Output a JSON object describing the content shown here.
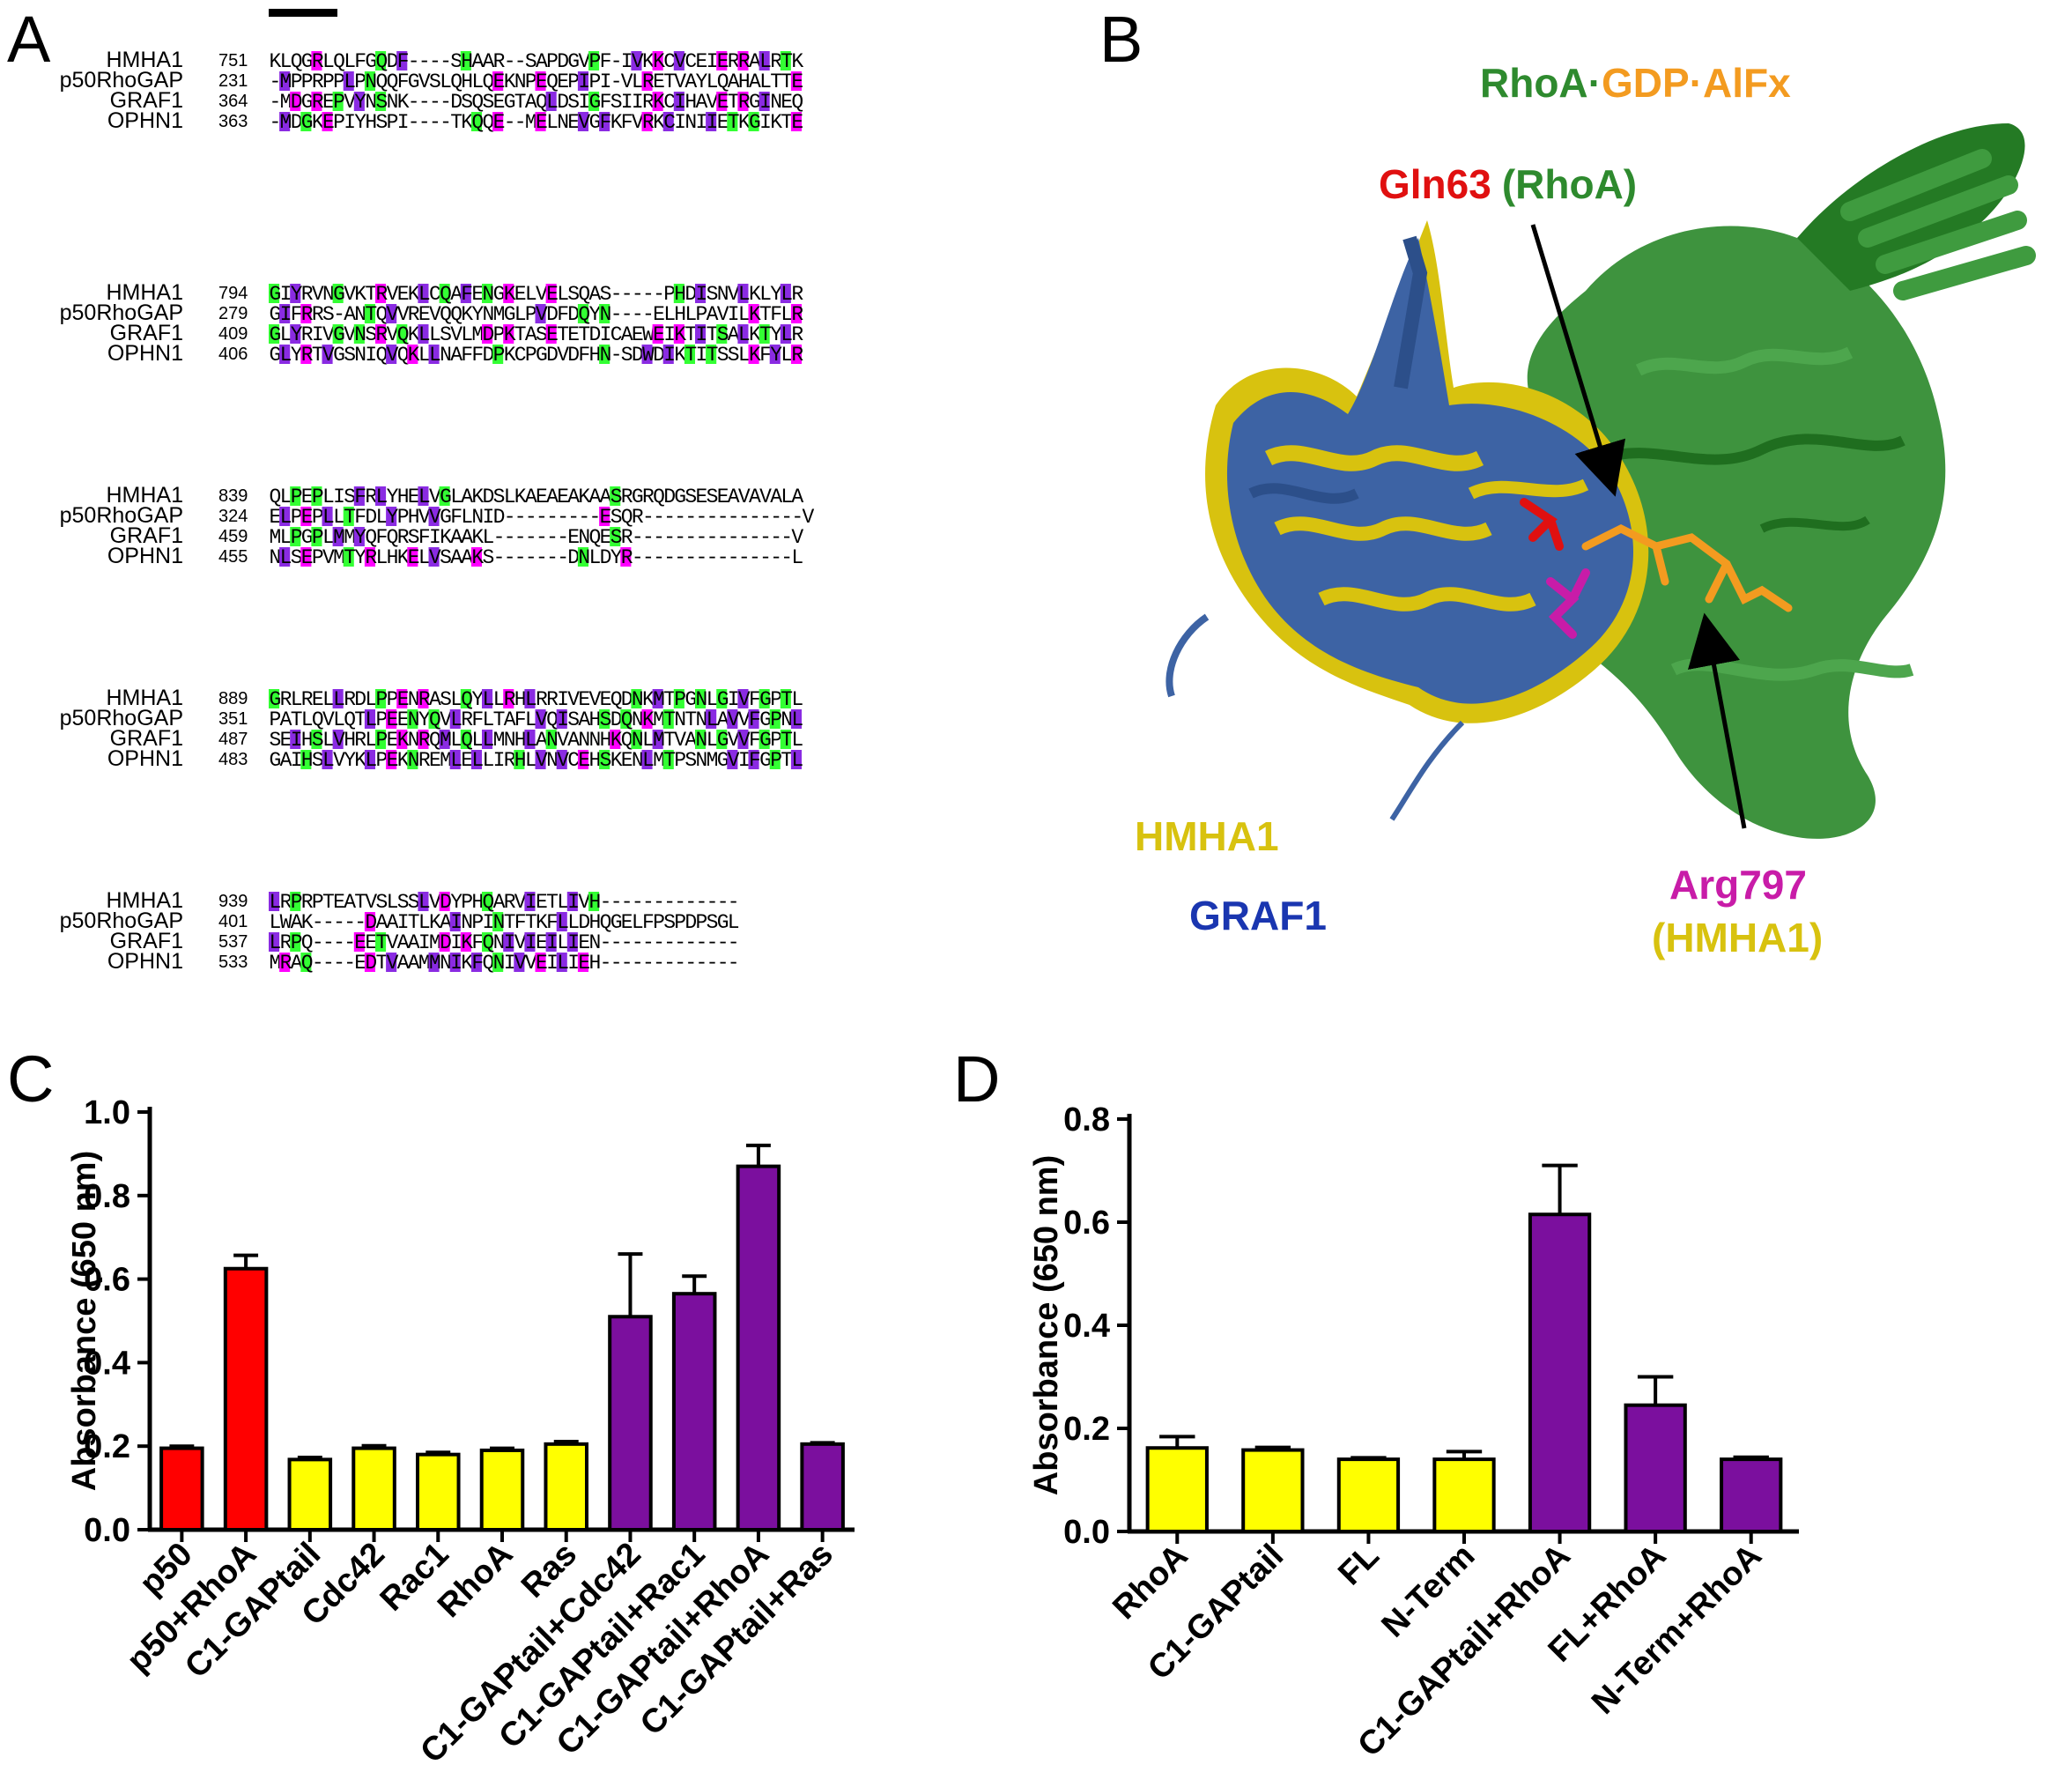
{
  "panels": {
    "a": "A",
    "b": "B",
    "c": "C",
    "d": "D"
  },
  "alignment": {
    "names": [
      "HMHA1",
      "p50RhoGAP",
      "GRAF1",
      "OPHN1"
    ],
    "blocks": [
      {
        "starts": [
          "751",
          "231",
          "364",
          "363"
        ],
        "rows": [
          "KLQGRLQLFGQDF----SHAAR--SAPDGVPF-IVKKCVCEIERRALRTK",
          "-MPPRPPLPNQQFGVSLQHLQEKNPEQEPIPI-VLRETVAYLQAHALTTE",
          "-MDGREPVYNSNK----DSQSEGTAQLDSIGFSIIRKCIHAVETRGINEQ",
          "-MDGKEPIYHSPI----TKQQE--MELNEVGFKFVRKCINIIETKGIKTE"
        ],
        "bar": true
      },
      {
        "starts": [
          "794",
          "279",
          "409",
          "406"
        ],
        "rows": [
          "GIYRVNGVKTRVEKLCQAFENGKELVELSQAS-----PHDISNVLKLYLR",
          "GIFRRS-ANTQVVREVQQKYNMGLPVDFDQYN----ELHLPAVILKTFLR",
          "GLYRIVGVNSRVQKLLSVLMDPKTASETETDICAEWEIKTITSALKTYLR",
          "GLYRTVGSNIQVQKLLNAFFDPKCPGDVDFHN-SDWDIKTITSSLKFYLR"
        ],
        "bar": false
      },
      {
        "starts": [
          "839",
          "324",
          "459",
          "455"
        ],
        "rows": [
          "QLPEPLISFRLYHELVGLAKDSLKAEAEAKAASRGRQDGSESEAVAVALA",
          "ELPEPLLTFDLYPHVVGFLNID---------ESQR---------------V",
          "MLPGPLMMYQFQRSFIKAAKL-------ENQESR---------------V",
          "NLSEPVMTYRLHKELVSAAKS-------DNLDYR---------------L"
        ],
        "bar": false
      },
      {
        "starts": [
          "889",
          "351",
          "487",
          "483"
        ],
        "rows": [
          "GRLRELLRDLPPENRASLQYLLRHLRRIVEVEQDNKMTPGNLGIVFGPTL",
          "PATLQVLQTLPEENYQVLRFLTAFLVQISAHSDQNKMTNTNLAVVFGPNL",
          "SEIHSLVHRLPEKNRQMLQLLMNHLANVANNHKQNLMTVANLGVVFGPTL",
          "GAIHSLVYKLPEKNREMLELLIRHLVNVCEHSKENLMTPSNMGVIFGPTL"
        ],
        "bar": false
      },
      {
        "starts": [
          "939",
          "401",
          "537",
          "533"
        ],
        "rows": [
          "LRPRPTEATVSLSSLVDYPHQARVIETLIVH-------------",
          "LWAK-----DAAITLKAINPINTFTKFLLDHQGELFPSPDPSGL",
          "LRPQ----EETVAAIMDIKFQNIVIEILIEN-------------",
          "MRAQ----EDTVAAMMNIKFQNIVVEILIEH-------------"
        ],
        "bar": false
      }
    ]
  },
  "structure": {
    "title": {
      "rhoa": "RhoA",
      "dot1": "·",
      "gdp": "GDP",
      "dot2": "·",
      "alf": "AlFx"
    },
    "gln_label": {
      "gln": "Gln63",
      "rhoa": "(RhoA)"
    },
    "hmha1_label": "HMHA1",
    "graf1_label": "GRAF1",
    "arg_label": {
      "arg": "Arg797",
      "sub": "(HMHA1)"
    },
    "colors": {
      "hmha1": "#d8c20f",
      "graf1": "#3d63a4",
      "rhoa": "#2e8a2e",
      "gdp": "#f39b20",
      "gln": "#e01010",
      "arg": "#c81ca8"
    }
  },
  "chart_data": [
    {
      "type": "bar",
      "ylabel": "Absorbance (650 nm)",
      "ylim": [
        0,
        1.0
      ],
      "yticks": [
        "0.0",
        "0.2",
        "0.4",
        "0.6",
        "0.8",
        "1.0"
      ],
      "categories": [
        "p50",
        "p50+RhoA",
        "C1-GAPtail",
        "Cdc42",
        "Rac1",
        "RhoA",
        "Ras",
        "C1-GAPtail+Cdc42",
        "C1-GAPtail+Rac1",
        "C1-GAPtail+RhoA",
        "C1-GAPtail+Ras"
      ],
      "values": [
        0.195,
        0.625,
        0.168,
        0.195,
        0.18,
        0.19,
        0.205,
        0.51,
        0.565,
        0.87,
        0.205
      ],
      "errors": [
        0.005,
        0.032,
        0.005,
        0.006,
        0.005,
        0.005,
        0.006,
        0.15,
        0.042,
        0.05,
        0.003
      ],
      "colors": [
        "#ff0000",
        "#ff0000",
        "#ffff00",
        "#ffff00",
        "#ffff00",
        "#ffff00",
        "#ffff00",
        "#7b0f9e",
        "#7b0f9e",
        "#7b0f9e",
        "#7b0f9e"
      ]
    },
    {
      "type": "bar",
      "ylabel": "Absorbance (650 nm)",
      "ylim": [
        0,
        0.8
      ],
      "yticks": [
        "0.0",
        "0.2",
        "0.4",
        "0.6",
        "0.8"
      ],
      "categories": [
        "RhoA",
        "C1-GAPtail",
        "FL",
        "N-Term",
        "C1-GAPtail+RhoA",
        "FL+RhoA",
        "N-Term+RhoA"
      ],
      "values": [
        0.162,
        0.158,
        0.14,
        0.14,
        0.615,
        0.245,
        0.14
      ],
      "errors": [
        0.022,
        0.005,
        0.003,
        0.015,
        0.095,
        0.055,
        0.004
      ],
      "colors": [
        "#ffff00",
        "#ffff00",
        "#ffff00",
        "#ffff00",
        "#7b0f9e",
        "#7b0f9e",
        "#7b0f9e"
      ]
    }
  ]
}
